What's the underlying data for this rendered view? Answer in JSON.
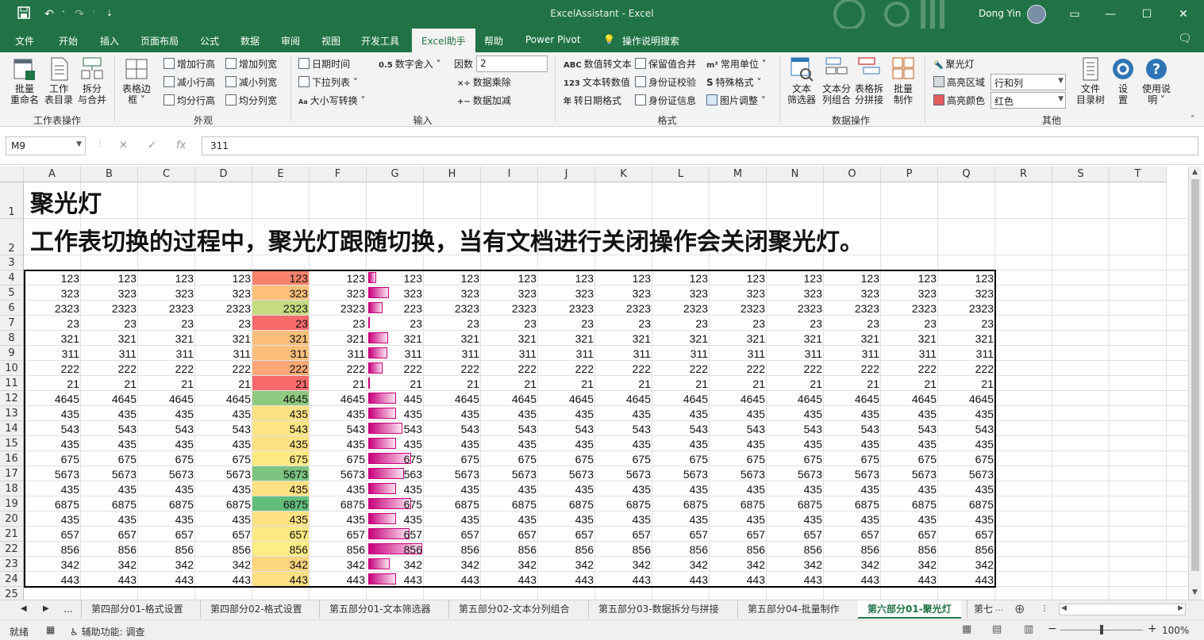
{
  "window": {
    "title": "ExcelAssistant  -  Excel",
    "user": "Dong Yin",
    "qat_more": "⇣"
  },
  "menu": [
    "文件",
    "开始",
    "插入",
    "页面布局",
    "公式",
    "数据",
    "审阅",
    "视图",
    "开发工具",
    "Excel助手",
    "帮助",
    "Power Pivot",
    "操作说明搜索"
  ],
  "ribbon": {
    "g1": {
      "label": "工作表操作",
      "btn1": "批量\n重命名",
      "btn2": "工作\n表目录",
      "btn3": "拆分\n与合并"
    },
    "g2": {
      "label": "外观",
      "border": "表格边\n框 ˅",
      "add_row_h": "增加行高",
      "dec_row_h": "减小行高",
      "even_row_h": "均分行高",
      "add_col_w": "增加列宽",
      "dec_col_w": "减小列宽",
      "even_col_w": "均分列宽"
    },
    "g3": {
      "label": "输入",
      "datetime": "日期时间",
      "dropdown": "下拉列表",
      "case": "大小写转换",
      "round": "数字舍入",
      "round_prefix": "0.5",
      "factor_label": "因数",
      "factor_value": "2",
      "multiply": "数据乘除",
      "add": "数据加减"
    },
    "g4": {
      "label": "格式",
      "num2text": "数值转文本",
      "text2num": "文本转数值",
      "date_fmt": "转日期格式",
      "keep_merge": "保留值合并",
      "id_check": "身份证校验",
      "id_info": "身份证信息",
      "units": "常用单位",
      "special": "特殊格式",
      "image": "图片调整"
    },
    "g5": {
      "label": "数据操作",
      "filter": "文本\n筛选器",
      "split": "文本分\n列组合",
      "table_split": "表格拆\n分拼接",
      "batch": "批量\n制作"
    },
    "g6": {
      "label": "其他",
      "spotlight": "聚光灯",
      "hl_area_label": "高亮区域",
      "hl_area_value": "行和列",
      "hl_color_label": "高亮颜色",
      "hl_color_value": "红色",
      "tree": "文件\n目录树",
      "settings": "设\n置",
      "help": "使用说\n明 ˅"
    }
  },
  "formula_bar": {
    "name_box": "M9",
    "fx": "fx",
    "value": "311"
  },
  "sheet": {
    "columns": [
      "A",
      "B",
      "C",
      "D",
      "E",
      "F",
      "G",
      "H",
      "I",
      "J",
      "K",
      "L",
      "M",
      "N",
      "O",
      "P",
      "Q",
      "R",
      "S",
      "T"
    ],
    "rows": [
      "1",
      "2",
      "3",
      "4",
      "5",
      "6",
      "7",
      "8",
      "9",
      "10",
      "11",
      "12",
      "13",
      "14",
      "15",
      "16",
      "17",
      "18",
      "19",
      "20",
      "21",
      "22",
      "23",
      "24",
      "25"
    ],
    "title1": "聚光灯",
    "title2": "工作表切换的过程中，聚光灯跟随切换，当有文档进行关闭操作会关闭聚光灯。",
    "values": [
      "123",
      "323",
      "2323",
      "23",
      "321",
      "311",
      "222",
      "21",
      "4645",
      "435",
      "543",
      "435",
      "675",
      "5673",
      "435",
      "6875",
      "435",
      "657",
      "856",
      "342",
      "443"
    ],
    "g_values": [
      "123",
      "323",
      "223",
      "23",
      "321",
      "311",
      "222",
      "21",
      "445",
      "435",
      "543",
      "435",
      "675",
      "563",
      "435",
      "675",
      "435",
      "657",
      "856",
      "342",
      "443"
    ],
    "heat_colors": [
      "#f8816b",
      "#fcc07c",
      "#c6db81",
      "#f8696b",
      "#fcbf7b",
      "#fcbf7b",
      "#fba876",
      "#f8696b",
      "#8fc980",
      "#fee182",
      "#fee583",
      "#fee182",
      "#feea83",
      "#7cc47f",
      "#fee182",
      "#63be7b",
      "#fee182",
      "#fee883",
      "#feec84",
      "#fcd580",
      "#fee082"
    ],
    "bar_frac": [
      0.15,
      0.38,
      0.26,
      0.03,
      0.37,
      0.36,
      0.26,
      0.02,
      0.52,
      0.51,
      0.63,
      0.51,
      0.79,
      0.66,
      0.51,
      0.79,
      0.51,
      0.77,
      1.0,
      0.4,
      0.52
    ]
  },
  "sheet_tabs": [
    "…",
    "第四部分01-格式设置",
    "第四部分02-格式设置",
    "第五部分01-文本筛选器",
    "第五部分02-文本分列组合",
    "第五部分03-数据拆分与拼接",
    "第五部分04-批量制作",
    "第六部分01-聚光灯",
    "第七"
  ],
  "status": {
    "ready": "就绪",
    "accessibility": "辅助功能: 调查",
    "zoom": "100%"
  }
}
